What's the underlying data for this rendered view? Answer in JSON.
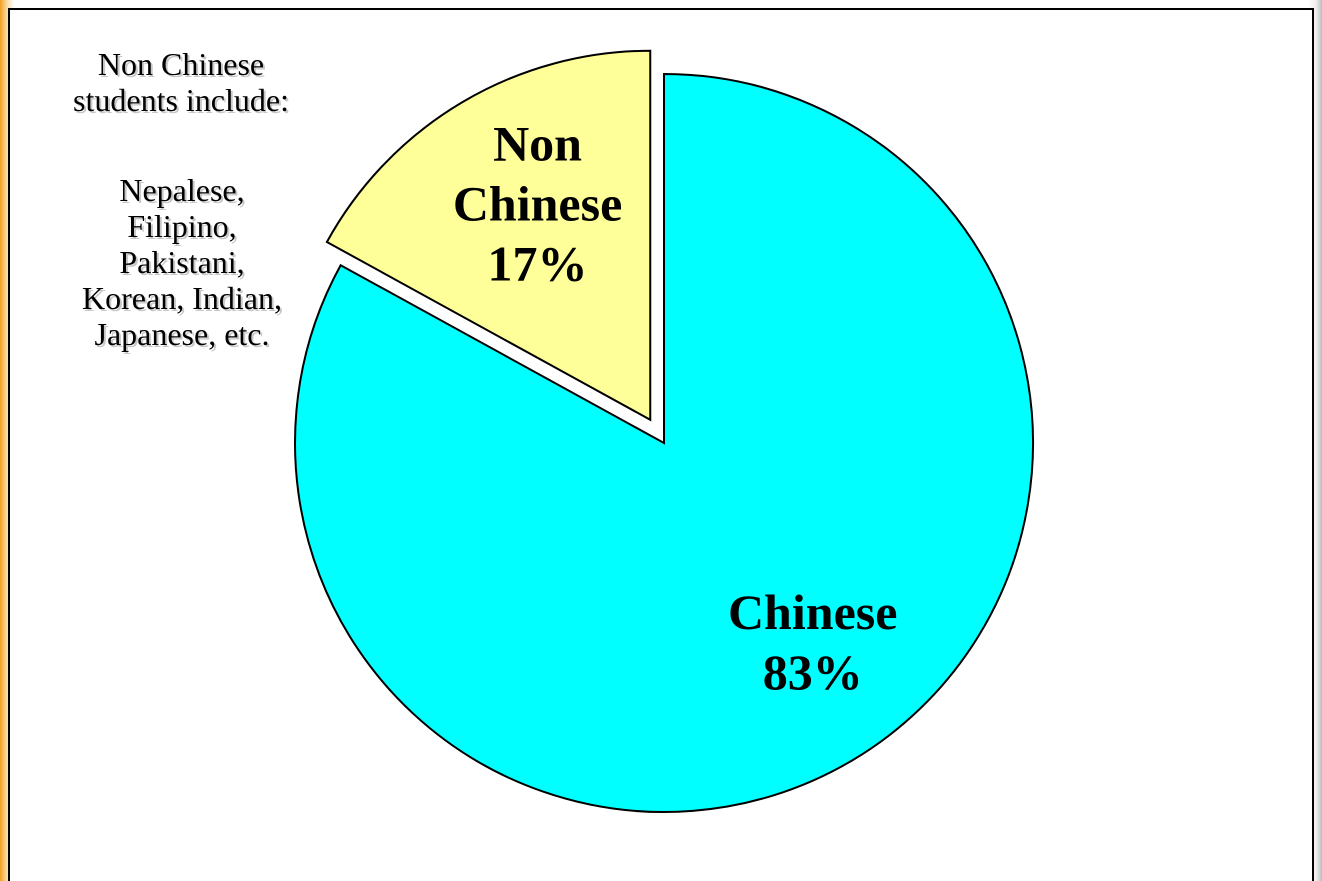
{
  "chart_data": {
    "type": "pie",
    "title": "",
    "slices": [
      {
        "name": "Non Chinese",
        "value": 17,
        "value_label": "17%",
        "color": "#ffff99",
        "exploded": true
      },
      {
        "name": "Chinese",
        "value": 83,
        "value_label": "83%",
        "color": "#00ffff",
        "exploded": false
      }
    ],
    "start": "12 o'clock",
    "direction": "counterclockwise",
    "annotations": {
      "heading": "Non Chinese\nstudents include:",
      "list": "Nepalese,\nFilipino,\nPakistani,\nKorean, Indian,\nJapanese, etc."
    }
  },
  "colors": {
    "outline": "#000000",
    "background": "#ffffff",
    "frame_accent": "#f0a020"
  }
}
